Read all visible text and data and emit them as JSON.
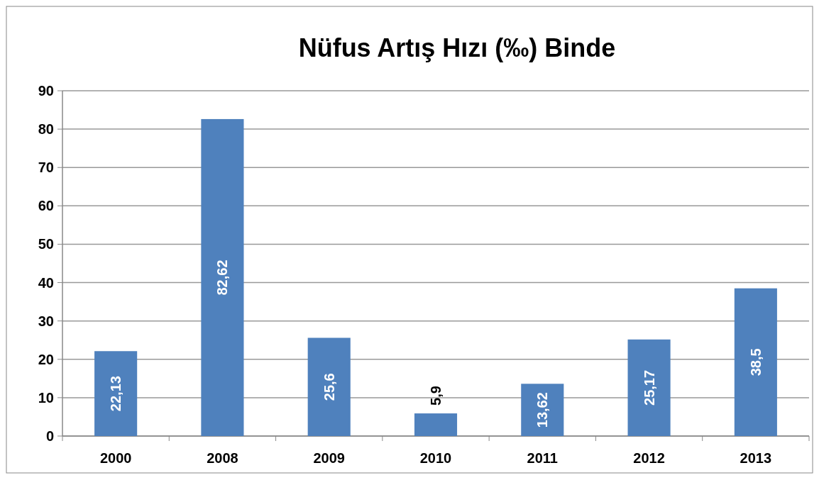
{
  "chart_data": {
    "type": "bar",
    "title": "Nüfus Artış Hızı  (‰) Binde",
    "categories": [
      "2000",
      "2008",
      "2009",
      "2010",
      "2011",
      "2012",
      "2013"
    ],
    "values": [
      22.13,
      82.62,
      25.6,
      5.9,
      13.62,
      25.17,
      38.5
    ],
    "color": "#4f81bd",
    "ylim": [
      0,
      90
    ],
    "yticks": [
      0,
      10,
      20,
      30,
      40,
      50,
      60,
      70,
      80,
      90
    ],
    "grid": "y",
    "value_labels": [
      "22,13",
      "82,62",
      "25,6",
      "5,9",
      "13,62",
      "25,17",
      "38,5"
    ]
  }
}
